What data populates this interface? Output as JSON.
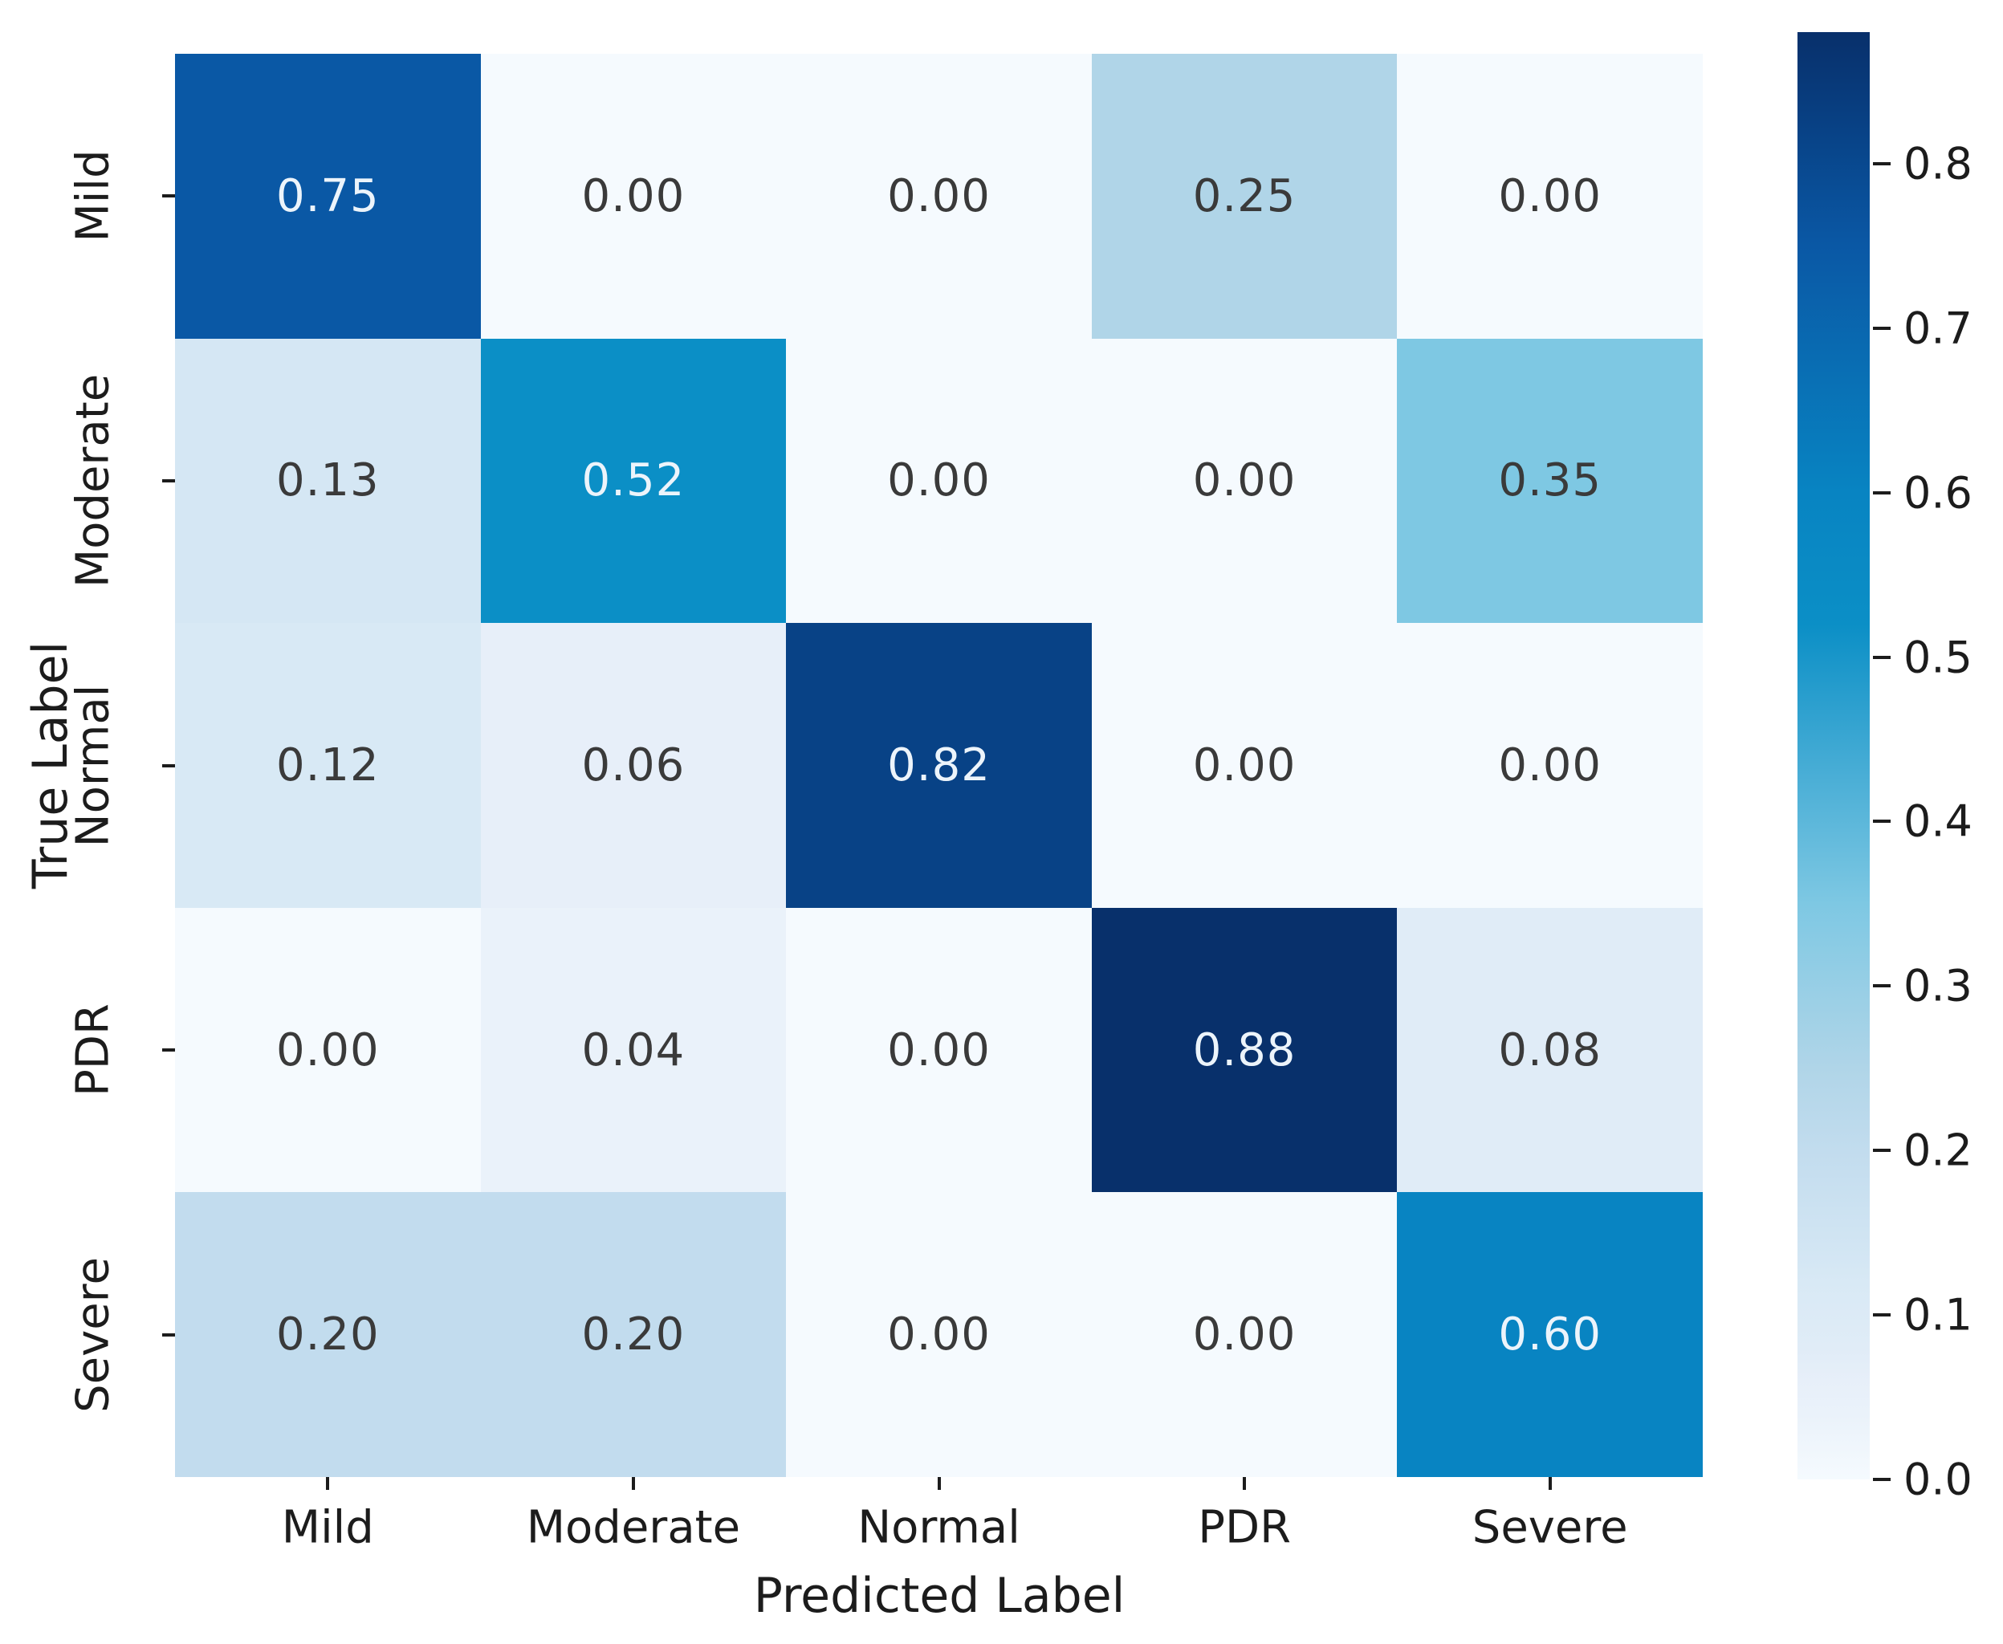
{
  "chart_data": {
    "type": "heatmap",
    "title": "",
    "xlabel": "Predicted Label",
    "ylabel": "True Label",
    "x_categories": [
      "Mild",
      "Moderate",
      "Normal",
      "PDR",
      "Severe"
    ],
    "y_categories": [
      "Mild",
      "Moderate",
      "Normal",
      "PDR",
      "Severe"
    ],
    "matrix": [
      [
        0.75,
        0.0,
        0.0,
        0.25,
        0.0
      ],
      [
        0.13,
        0.52,
        0.0,
        0.0,
        0.35
      ],
      [
        0.12,
        0.06,
        0.82,
        0.0,
        0.0
      ],
      [
        0.0,
        0.04,
        0.0,
        0.88,
        0.08
      ],
      [
        0.2,
        0.2,
        0.0,
        0.0,
        0.6
      ]
    ],
    "value_decimals": 2,
    "legend_position": "right-colorbar",
    "grid": false,
    "colorbar": {
      "vmin": 0.0,
      "vmax": 0.88,
      "tick_labels": [
        "0.0",
        "0.1",
        "0.2",
        "0.3",
        "0.4",
        "0.5",
        "0.6",
        "0.7",
        "0.8"
      ],
      "tick_values": [
        0.0,
        0.1,
        0.2,
        0.3,
        0.4,
        0.5,
        0.6,
        0.7,
        0.8
      ]
    },
    "colormap_name": "Blues",
    "colormap_anchors": [
      {
        "v": 0.0,
        "c": "#f5fafe"
      },
      {
        "v": 0.04,
        "c": "#eaf2fa"
      },
      {
        "v": 0.06,
        "c": "#e7eff9"
      },
      {
        "v": 0.08,
        "c": "#e0ecf7"
      },
      {
        "v": 0.12,
        "c": "#d8e9f5"
      },
      {
        "v": 0.13,
        "c": "#d5e7f4"
      },
      {
        "v": 0.2,
        "c": "#c2dcee"
      },
      {
        "v": 0.25,
        "c": "#b0d5e8"
      },
      {
        "v": 0.35,
        "c": "#7ec8e3"
      },
      {
        "v": 0.52,
        "c": "#0b8fc6"
      },
      {
        "v": 0.6,
        "c": "#0884c2"
      },
      {
        "v": 0.75,
        "c": "#0a58a5"
      },
      {
        "v": 0.82,
        "c": "#084286"
      },
      {
        "v": 0.88,
        "c": "#08306b"
      }
    ],
    "annotation_color_dark": "#3a3a3a",
    "annotation_color_light": "#ecf4fb",
    "white_text_threshold": 0.45
  }
}
